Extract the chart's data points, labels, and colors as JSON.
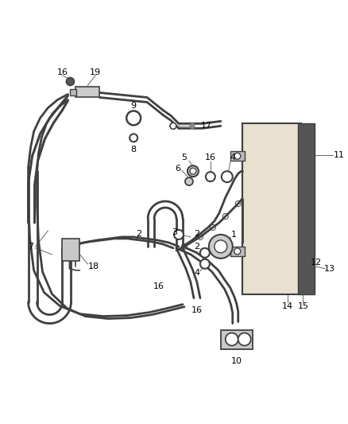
{
  "background_color": "#ffffff",
  "line_color": "#404040",
  "label_color": "#000000",
  "figure_width": 4.38,
  "figure_height": 5.33,
  "dpi": 100
}
